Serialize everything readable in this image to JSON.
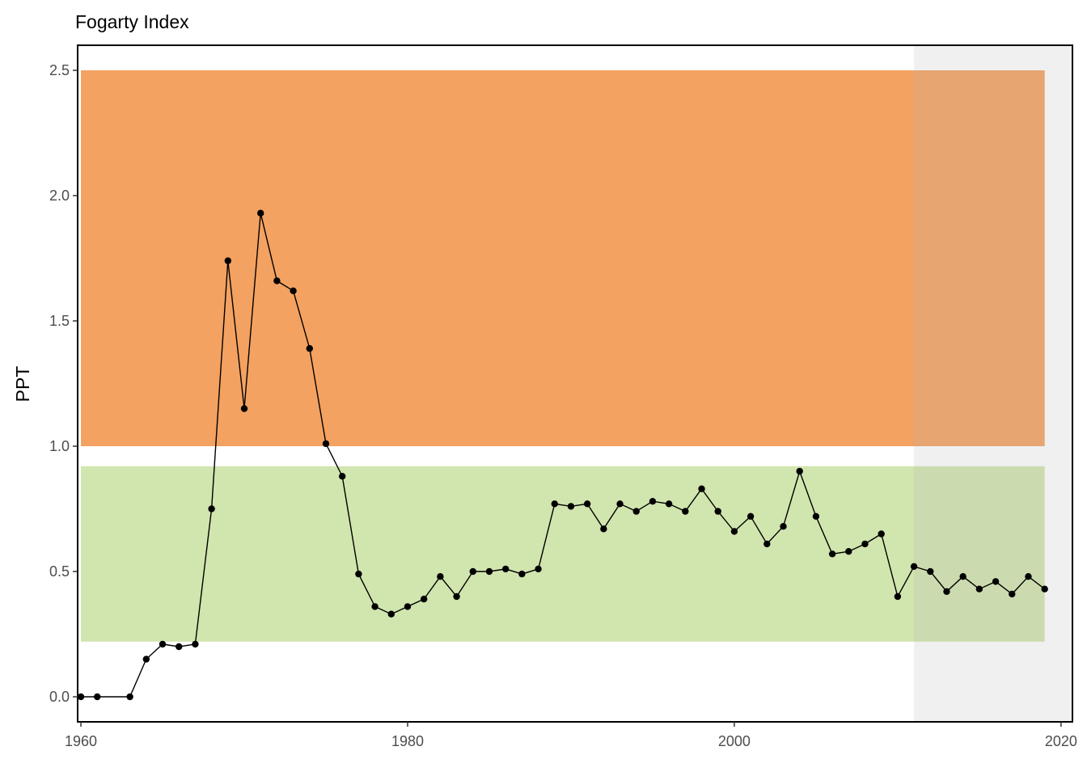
{
  "chart_data": {
    "type": "line",
    "title": "Fogarty Index",
    "xlabel": "",
    "ylabel": "PPT",
    "xlim": [
      1959.8,
      2020.7
    ],
    "ylim": [
      -0.1,
      2.6
    ],
    "x_ticks": [
      1960,
      1980,
      2000,
      2020
    ],
    "y_ticks": [
      "0.0",
      "0.5",
      "1.0",
      "1.5",
      "2.0",
      "2.5"
    ],
    "grid": false,
    "legend": "none",
    "bands": [
      {
        "x_from": 1960,
        "x_to": 2019,
        "y_from": 1.0,
        "y_to": 2.5,
        "color": "#f3a261"
      },
      {
        "x_from": 1960,
        "x_to": 2019,
        "y_from": 0.22,
        "y_to": 0.92,
        "color": "#d1e5ae"
      }
    ],
    "shaded_period": {
      "x_from": 2011,
      "x_to": 2020.7,
      "color": "#b4b4b4",
      "opacity": 0.2
    },
    "series": [
      {
        "color": "#000000",
        "x": [
          1960,
          1961,
          1963,
          1964,
          1965,
          1966,
          1967,
          1968,
          1969,
          1970,
          1971,
          1972,
          1973,
          1974,
          1975,
          1976,
          1977,
          1978,
          1979,
          1980,
          1981,
          1982,
          1983,
          1984,
          1985,
          1986,
          1987,
          1988,
          1989,
          1990,
          1991,
          1992,
          1993,
          1994,
          1995,
          1996,
          1997,
          1998,
          1999,
          2000,
          2001,
          2002,
          2003,
          2004,
          2005,
          2006,
          2007,
          2008,
          2009,
          2010,
          2011,
          2012,
          2013,
          2014,
          2015,
          2016,
          2017,
          2018,
          2019
        ],
        "y": [
          0.0,
          0.0,
          0.0,
          0.15,
          0.21,
          0.2,
          0.21,
          0.75,
          1.74,
          1.15,
          1.93,
          1.66,
          1.62,
          1.39,
          1.01,
          0.88,
          0.49,
          0.36,
          0.33,
          0.36,
          0.39,
          0.48,
          0.4,
          0.5,
          0.5,
          0.51,
          0.49,
          0.51,
          0.77,
          0.76,
          0.77,
          0.67,
          0.77,
          0.74,
          0.78,
          0.77,
          0.74,
          0.83,
          0.74,
          0.66,
          0.72,
          0.61,
          0.68,
          0.9,
          0.72,
          0.57,
          0.58,
          0.61,
          0.65,
          0.4,
          0.52,
          0.5,
          0.42,
          0.48,
          0.43,
          0.46,
          0.41,
          0.48,
          0.43
        ]
      }
    ]
  }
}
